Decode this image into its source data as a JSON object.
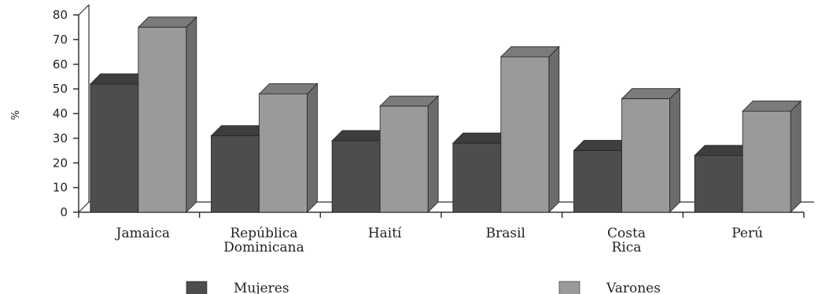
{
  "chart_data": {
    "type": "bar",
    "title": "",
    "xlabel": "",
    "ylabel": "%",
    "ylim": [
      0,
      80
    ],
    "yticks": [
      0,
      10,
      20,
      30,
      40,
      50,
      60,
      70,
      80
    ],
    "categories": [
      [
        "Jamaica"
      ],
      [
        "República",
        "Dominicana"
      ],
      [
        "Haití"
      ],
      [
        "Brasil"
      ],
      [
        "Costa",
        "Rica"
      ],
      [
        "Perú"
      ]
    ],
    "series": [
      {
        "name": "Mujeres",
        "values": [
          52,
          31,
          29,
          28,
          25,
          23
        ],
        "color": "#4d4d4d"
      },
      {
        "name": "Varones",
        "values": [
          75,
          48,
          43,
          63,
          46,
          41
        ],
        "color": "#9a9a9a"
      }
    ],
    "grid": false,
    "legend": "bottom",
    "style": "3d"
  }
}
